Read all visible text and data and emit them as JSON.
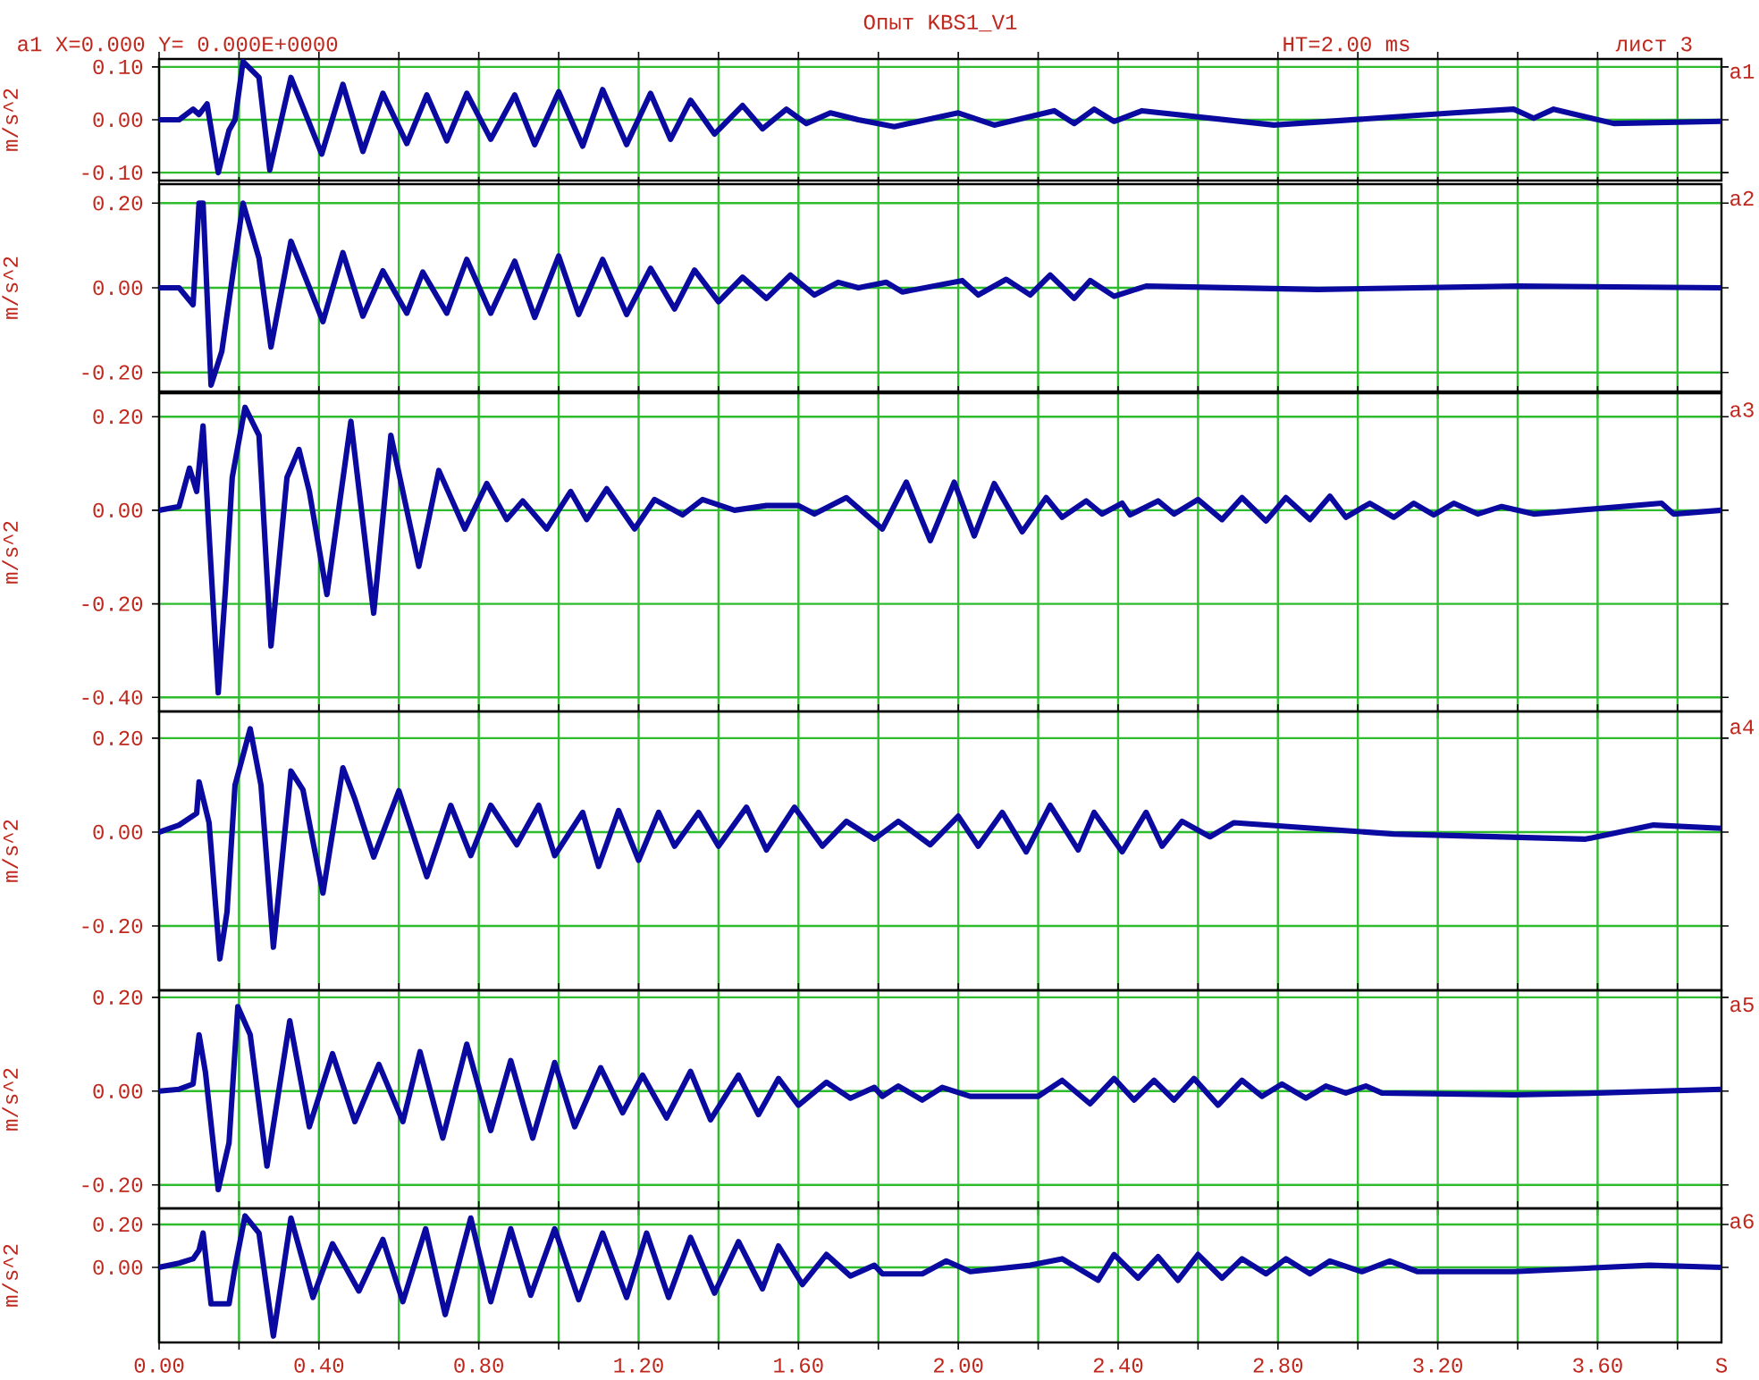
{
  "chart_data": [
    {
      "type": "line",
      "title": "Опыт KBS1_V1",
      "annotations": [
        "a1 X=0.000 Y= 0.000E+0000",
        "HT=2.00 ms",
        "лист 3"
      ],
      "ylabel": "m/s^2",
      "grid": true,
      "tick_labels": "y",
      "xlim": [
        0,
        3.91
      ],
      "ylim": [
        -0.115,
        0.115
      ],
      "xticks": [
        0,
        0.2,
        0.4,
        0.6,
        0.8,
        1.0,
        1.2,
        1.4,
        1.6,
        1.8,
        2.0,
        2.2,
        2.4,
        2.6,
        2.8,
        3.0,
        3.2,
        3.4,
        3.6,
        3.8
      ],
      "yticks": [
        {
          "value": -0.1,
          "label": "-0.10"
        },
        {
          "value": 0,
          "label": "0.00"
        },
        {
          "value": 0.1,
          "label": "0.10"
        }
      ],
      "x": [
        0,
        0.05,
        0.085,
        0.1,
        0.12,
        0.148,
        0.175,
        0.19,
        0.21,
        0.25,
        0.277,
        0.33,
        0.407,
        0.46,
        0.51,
        0.56,
        0.62,
        0.67,
        0.72,
        0.77,
        0.83,
        0.89,
        0.94,
        1.0,
        1.06,
        1.11,
        1.17,
        1.23,
        1.28,
        1.33,
        1.39,
        1.46,
        1.51,
        1.57,
        1.62,
        1.68,
        1.75,
        1.84,
        2.0,
        2.09,
        2.24,
        2.29,
        2.34,
        2.39,
        2.46,
        2.79,
        3.24,
        3.39,
        3.44,
        3.49,
        3.64,
        3.91
      ],
      "series": [
        {
          "name": "a1",
          "color": "#0a0aa0",
          "values": [
            0,
            0,
            0.02,
            0.01,
            0.03,
            -0.1,
            -0.02,
            0.0,
            0.11,
            0.08,
            -0.095,
            0.08,
            -0.065,
            0.067,
            -0.06,
            0.05,
            -0.045,
            0.047,
            -0.04,
            0.05,
            -0.037,
            0.047,
            -0.047,
            0.053,
            -0.05,
            0.057,
            -0.047,
            0.05,
            -0.037,
            0.037,
            -0.027,
            0.027,
            -0.017,
            0.02,
            -0.007,
            0.013,
            0,
            -0.013,
            0.013,
            -0.01,
            0.017,
            -0.007,
            0.02,
            -0.003,
            0.017,
            -0.01,
            0.013,
            0.02,
            0.003,
            0.02,
            -0.007,
            -0.003
          ]
        }
      ]
    },
    {
      "type": "line",
      "ylabel": "m/s^2",
      "grid": true,
      "tick_labels": "y",
      "xlim": [
        0,
        3.91
      ],
      "ylim": [
        -0.245,
        0.245
      ],
      "xticks": [
        0,
        0.2,
        0.4,
        0.6,
        0.8,
        1.0,
        1.2,
        1.4,
        1.6,
        1.8,
        2.0,
        2.2,
        2.4,
        2.6,
        2.8,
        3.0,
        3.2,
        3.4,
        3.6,
        3.8
      ],
      "yticks": [
        {
          "value": -0.2,
          "label": "-0.20"
        },
        {
          "value": 0,
          "label": "0.00"
        },
        {
          "value": 0.2,
          "label": "0.20"
        }
      ],
      "x": [
        0,
        0.05,
        0.085,
        0.1,
        0.11,
        0.13,
        0.157,
        0.21,
        0.25,
        0.28,
        0.33,
        0.41,
        0.46,
        0.51,
        0.56,
        0.62,
        0.66,
        0.72,
        0.77,
        0.83,
        0.89,
        0.94,
        1.0,
        1.05,
        1.11,
        1.17,
        1.23,
        1.29,
        1.34,
        1.4,
        1.46,
        1.52,
        1.58,
        1.64,
        1.7,
        1.75,
        1.82,
        1.86,
        2.01,
        2.05,
        2.12,
        2.18,
        2.23,
        2.29,
        2.33,
        2.39,
        2.47,
        2.9,
        3.4,
        3.91
      ],
      "series": [
        {
          "name": "a2",
          "color": "#0a0aa0",
          "values": [
            0,
            0,
            -0.04,
            0.2,
            0.2,
            -0.23,
            -0.15,
            0.2,
            0.07,
            -0.14,
            0.11,
            -0.08,
            0.083,
            -0.067,
            0.04,
            -0.06,
            0.037,
            -0.06,
            0.067,
            -0.06,
            0.063,
            -0.07,
            0.075,
            -0.063,
            0.067,
            -0.063,
            0.046,
            -0.05,
            0.042,
            -0.033,
            0.025,
            -0.025,
            0.03,
            -0.017,
            0.013,
            0,
            0.013,
            -0.01,
            0.017,
            -0.017,
            0.02,
            -0.017,
            0.03,
            -0.025,
            0.017,
            -0.02,
            0.004,
            -0.004,
            0.004,
            0
          ]
        }
      ]
    },
    {
      "type": "line",
      "ylabel": "m/s^2",
      "grid": true,
      "tick_labels": "y",
      "xlim": [
        0,
        3.91
      ],
      "ylim": [
        -0.43,
        0.25
      ],
      "xticks": [
        0,
        0.2,
        0.4,
        0.6,
        0.8,
        1.0,
        1.2,
        1.4,
        1.6,
        1.8,
        2.0,
        2.2,
        2.4,
        2.6,
        2.8,
        3.0,
        3.2,
        3.4,
        3.6,
        3.8
      ],
      "yticks": [
        {
          "value": -0.4,
          "label": "-0.40"
        },
        {
          "value": -0.2,
          "label": "-0.20"
        },
        {
          "value": 0,
          "label": "0.00"
        },
        {
          "value": 0.2,
          "label": "0.20"
        }
      ],
      "x": [
        0,
        0.05,
        0.076,
        0.094,
        0.11,
        0.125,
        0.148,
        0.166,
        0.183,
        0.215,
        0.25,
        0.28,
        0.32,
        0.35,
        0.376,
        0.42,
        0.48,
        0.537,
        0.58,
        0.65,
        0.7,
        0.765,
        0.82,
        0.87,
        0.91,
        0.97,
        1.03,
        1.07,
        1.12,
        1.19,
        1.24,
        1.31,
        1.36,
        1.44,
        1.52,
        1.6,
        1.64,
        1.72,
        1.81,
        1.87,
        1.93,
        1.99,
        2.04,
        2.09,
        2.16,
        2.22,
        2.26,
        2.32,
        2.36,
        2.41,
        2.43,
        2.5,
        2.54,
        2.6,
        2.66,
        2.71,
        2.77,
        2.82,
        2.88,
        2.93,
        2.97,
        3.03,
        3.09,
        3.14,
        3.19,
        3.24,
        3.3,
        3.36,
        3.44,
        3.76,
        3.79,
        3.91
      ],
      "series": [
        {
          "name": "a3",
          "color": "#0a0aa0",
          "values": [
            0,
            0.008,
            0.09,
            0.04,
            0.18,
            -0.05,
            -0.39,
            -0.17,
            0.07,
            0.22,
            0.16,
            -0.29,
            0.07,
            0.13,
            0.04,
            -0.18,
            0.19,
            -0.22,
            0.16,
            -0.12,
            0.085,
            -0.04,
            0.057,
            -0.02,
            0.02,
            -0.04,
            0.04,
            -0.02,
            0.046,
            -0.04,
            0.023,
            -0.01,
            0.023,
            0,
            0.01,
            0.01,
            -0.008,
            0.027,
            -0.04,
            0.06,
            -0.065,
            0.06,
            -0.055,
            0.057,
            -0.046,
            0.027,
            -0.015,
            0.02,
            -0.008,
            0.015,
            -0.01,
            0.02,
            -0.008,
            0.023,
            -0.02,
            0.027,
            -0.023,
            0.027,
            -0.02,
            0.03,
            -0.015,
            0.015,
            -0.015,
            0.015,
            -0.01,
            0.015,
            -0.008,
            0.008,
            -0.008,
            0.015,
            -0.008,
            0
          ]
        }
      ]
    },
    {
      "type": "line",
      "ylabel": "m/s^2",
      "grid": true,
      "tick_labels": "y",
      "xlim": [
        0,
        3.91
      ],
      "ylim": [
        -0.337,
        0.257
      ],
      "xticks": [
        0,
        0.2,
        0.4,
        0.6,
        0.8,
        1.0,
        1.2,
        1.4,
        1.6,
        1.8,
        2.0,
        2.2,
        2.4,
        2.6,
        2.8,
        3.0,
        3.2,
        3.4,
        3.6,
        3.8
      ],
      "yticks": [
        {
          "value": -0.2,
          "label": "-0.20"
        },
        {
          "value": 0,
          "label": "0.00"
        },
        {
          "value": 0.2,
          "label": "0.20"
        }
      ],
      "x": [
        0,
        0.05,
        0.094,
        0.1,
        0.125,
        0.152,
        0.17,
        0.19,
        0.228,
        0.255,
        0.286,
        0.33,
        0.36,
        0.41,
        0.46,
        0.49,
        0.537,
        0.6,
        0.67,
        0.73,
        0.78,
        0.83,
        0.895,
        0.95,
        0.99,
        1.06,
        1.1,
        1.15,
        1.2,
        1.25,
        1.29,
        1.35,
        1.4,
        1.47,
        1.52,
        1.59,
        1.66,
        1.72,
        1.79,
        1.85,
        1.93,
        2.0,
        2.05,
        2.11,
        2.17,
        2.23,
        2.3,
        2.34,
        2.41,
        2.47,
        2.51,
        2.56,
        2.63,
        2.69,
        3.09,
        3.57,
        3.74,
        3.91
      ],
      "series": [
        {
          "name": "a4",
          "color": "#0a0aa0",
          "values": [
            0,
            0.015,
            0.04,
            0.107,
            0.02,
            -0.27,
            -0.17,
            0.1,
            0.22,
            0.1,
            -0.245,
            0.13,
            0.09,
            -0.13,
            0.137,
            0.07,
            -0.053,
            0.088,
            -0.095,
            0.057,
            -0.05,
            0.057,
            -0.027,
            0.057,
            -0.05,
            0.042,
            -0.073,
            0.046,
            -0.06,
            0.042,
            -0.03,
            0.042,
            -0.03,
            0.053,
            -0.038,
            0.053,
            -0.03,
            0.023,
            -0.015,
            0.023,
            -0.027,
            0.034,
            -0.03,
            0.042,
            -0.042,
            0.057,
            -0.038,
            0.042,
            -0.042,
            0.042,
            -0.03,
            0.023,
            -0.01,
            0.02,
            -0.004,
            -0.015,
            0.015,
            0.008
          ]
        }
      ]
    },
    {
      "type": "line",
      "ylabel": "m/s^2",
      "grid": true,
      "tick_labels": "y",
      "xlim": [
        0,
        3.91
      ],
      "ylim": [
        -0.25,
        0.215
      ],
      "xticks": [
        0,
        0.2,
        0.4,
        0.6,
        0.8,
        1.0,
        1.2,
        1.4,
        1.6,
        1.8,
        2.0,
        2.2,
        2.4,
        2.6,
        2.8,
        3.0,
        3.2,
        3.4,
        3.6,
        3.8
      ],
      "yticks": [
        {
          "value": -0.2,
          "label": "-0.20"
        },
        {
          "value": 0,
          "label": "0.00"
        },
        {
          "value": 0.2,
          "label": "0.20"
        }
      ],
      "x": [
        0,
        0.05,
        0.085,
        0.1,
        0.116,
        0.148,
        0.175,
        0.197,
        0.228,
        0.27,
        0.327,
        0.376,
        0.434,
        0.49,
        0.55,
        0.61,
        0.653,
        0.71,
        0.77,
        0.83,
        0.88,
        0.935,
        0.99,
        1.04,
        1.105,
        1.16,
        1.21,
        1.27,
        1.33,
        1.38,
        1.45,
        1.5,
        1.55,
        1.6,
        1.67,
        1.73,
        1.79,
        1.81,
        1.85,
        1.91,
        1.96,
        2.03,
        2.2,
        2.26,
        2.33,
        2.39,
        2.44,
        2.49,
        2.54,
        2.59,
        2.65,
        2.71,
        2.76,
        2.81,
        2.87,
        2.92,
        2.97,
        3.02,
        3.06,
        3.39,
        3.6,
        3.91
      ],
      "series": [
        {
          "name": "a5",
          "color": "#0a0aa0",
          "values": [
            0,
            0.004,
            0.015,
            0.12,
            0.04,
            -0.21,
            -0.11,
            0.18,
            0.12,
            -0.16,
            0.15,
            -0.076,
            0.08,
            -0.065,
            0.057,
            -0.065,
            0.084,
            -0.1,
            0.1,
            -0.084,
            0.065,
            -0.1,
            0.061,
            -0.076,
            0.05,
            -0.046,
            0.034,
            -0.057,
            0.042,
            -0.061,
            0.034,
            -0.05,
            0.027,
            -0.03,
            0.019,
            -0.015,
            0.008,
            -0.011,
            0.011,
            -0.019,
            0.008,
            -0.011,
            -0.011,
            0.023,
            -0.027,
            0.027,
            -0.019,
            0.023,
            -0.019,
            0.027,
            -0.03,
            0.023,
            -0.011,
            0.015,
            -0.015,
            0.011,
            -0.004,
            0.011,
            -0.004,
            -0.008,
            -0.004,
            0.004
          ]
        }
      ]
    },
    {
      "type": "line",
      "ylabel": "m/s^2",
      "xlabel": "S",
      "grid": true,
      "xlim": [
        0,
        3.91
      ],
      "ylim": [
        -0.35,
        0.275
      ],
      "xticks": [
        {
          "value": 0,
          "label": "0.00"
        },
        {
          "value": 0.2,
          "label": null
        },
        {
          "value": 0.4,
          "label": "0.40"
        },
        {
          "value": 0.6,
          "label": null
        },
        {
          "value": 0.8,
          "label": "0.80"
        },
        {
          "value": 1.0,
          "label": null
        },
        {
          "value": 1.2,
          "label": "1.20"
        },
        {
          "value": 1.4,
          "label": null
        },
        {
          "value": 1.6,
          "label": "1.60"
        },
        {
          "value": 1.8,
          "label": null
        },
        {
          "value": 2.0,
          "label": "2.00"
        },
        {
          "value": 2.2,
          "label": null
        },
        {
          "value": 2.4,
          "label": "2.40"
        },
        {
          "value": 2.6,
          "label": null
        },
        {
          "value": 2.8,
          "label": "2.80"
        },
        {
          "value": 3.0,
          "label": null
        },
        {
          "value": 3.2,
          "label": "3.20"
        },
        {
          "value": 3.4,
          "label": null
        },
        {
          "value": 3.6,
          "label": "3.60"
        },
        {
          "value": 3.8,
          "label": null
        }
      ],
      "yticks": [
        {
          "value": 0,
          "label": "0.00"
        },
        {
          "value": 0.2,
          "label": "0.20"
        }
      ],
      "x": [
        0,
        0.05,
        0.085,
        0.1,
        0.11,
        0.13,
        0.175,
        0.19,
        0.215,
        0.25,
        0.286,
        0.33,
        0.385,
        0.434,
        0.5,
        0.56,
        0.61,
        0.667,
        0.716,
        0.78,
        0.83,
        0.88,
        0.93,
        0.99,
        1.05,
        1.11,
        1.17,
        1.22,
        1.275,
        1.33,
        1.39,
        1.45,
        1.51,
        1.55,
        1.61,
        1.67,
        1.73,
        1.79,
        1.81,
        1.91,
        1.97,
        2.03,
        2.18,
        2.26,
        2.35,
        2.39,
        2.45,
        2.5,
        2.55,
        2.6,
        2.66,
        2.71,
        2.77,
        2.82,
        2.88,
        2.93,
        3.01,
        3.08,
        3.15,
        3.39,
        3.73,
        3.91
      ],
      "series": [
        {
          "name": "a6",
          "color": "#0a0aa0",
          "values": [
            0,
            0.02,
            0.04,
            0.08,
            0.16,
            -0.17,
            -0.17,
            0,
            0.24,
            0.16,
            -0.32,
            0.23,
            -0.14,
            0.11,
            -0.11,
            0.13,
            -0.16,
            0.18,
            -0.22,
            0.23,
            -0.16,
            0.18,
            -0.13,
            0.18,
            -0.15,
            0.16,
            -0.14,
            0.16,
            -0.14,
            0.14,
            -0.12,
            0.12,
            -0.1,
            0.1,
            -0.08,
            0.06,
            -0.04,
            0.01,
            -0.03,
            -0.03,
            0.03,
            -0.02,
            0.01,
            0.04,
            -0.06,
            0.06,
            -0.05,
            0.05,
            -0.06,
            0.06,
            -0.05,
            0.04,
            -0.03,
            0.04,
            -0.03,
            0.03,
            -0.02,
            0.03,
            -0.02,
            -0.02,
            0.01,
            0
          ]
        }
      ]
    }
  ]
}
